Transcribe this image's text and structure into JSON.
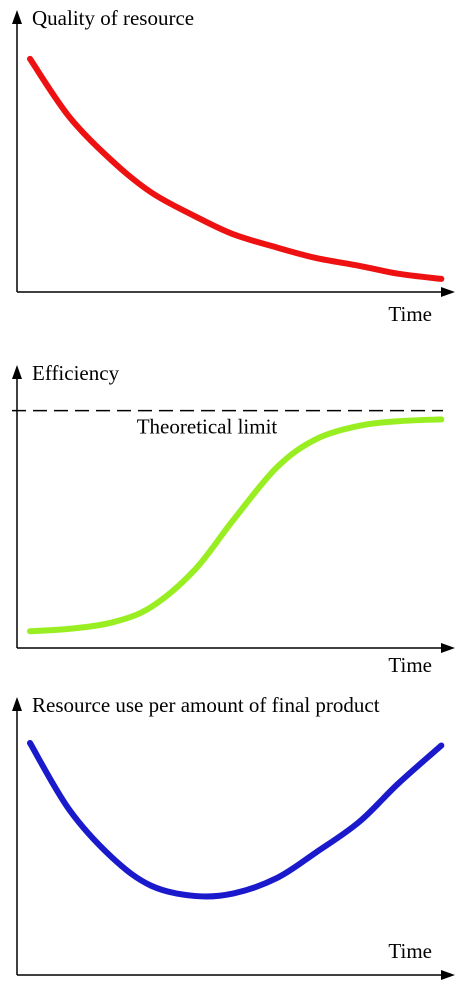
{
  "chart_data": [
    {
      "type": "line",
      "y_label": "Quality of resource",
      "x_label": "Time",
      "xlim": [
        0,
        100
      ],
      "ylim": [
        0,
        100
      ],
      "x": [
        3,
        12,
        22,
        31,
        41,
        50,
        60,
        69,
        79,
        88,
        98
      ],
      "color": "#ee1111",
      "values": [
        89,
        67,
        50,
        38,
        29,
        22,
        17,
        13,
        10,
        7,
        5
      ]
    },
    {
      "type": "line",
      "y_label": "Efficiency",
      "x_label": "Time",
      "xlim": [
        0,
        100
      ],
      "ylim": [
        0,
        100
      ],
      "x": [
        3,
        12,
        22,
        31,
        41,
        50,
        60,
        69,
        79,
        88,
        98
      ],
      "color": "#99ee22",
      "values": [
        6.5,
        7.4,
        9.9,
        15.9,
        30.2,
        49.7,
        70,
        80.9,
        86.1,
        87.9,
        88.6
      ],
      "annotation": {
        "text": "Theoretical limit",
        "value": 92
      }
    },
    {
      "type": "line",
      "y_label": "Resource use per amount of final product",
      "x_label": "Time",
      "xlim": [
        0,
        100
      ],
      "ylim": [
        0,
        100
      ],
      "x": [
        3,
        12,
        22,
        31,
        41,
        50,
        60,
        69,
        79,
        88,
        98
      ],
      "color": "#1a1acc",
      "values": [
        91,
        65,
        46,
        35,
        31,
        32,
        38,
        48,
        60,
        75,
        90
      ]
    }
  ]
}
